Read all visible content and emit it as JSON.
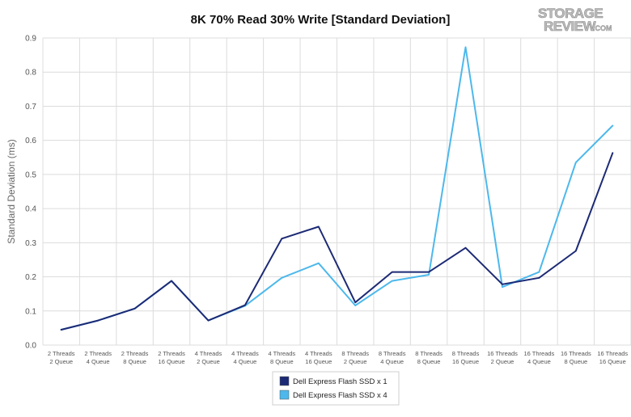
{
  "watermark": {
    "line1": "STORAGE",
    "line2": "REVIEW",
    "suffix": ".COM"
  },
  "colors": {
    "series1": "#1c2a75",
    "series2": "#4db8ec",
    "grid": "#dcdcdc"
  },
  "chart_data": {
    "type": "line",
    "title": "8K 70% Read 30% Write [Standard Deviation]",
    "xlabel": "",
    "ylabel": "Standard Deviation (ms)",
    "ylim": [
      0,
      0.9
    ],
    "yticks": [
      "0.0",
      "0.1",
      "0.2",
      "0.3",
      "0.4",
      "0.5",
      "0.6",
      "0.7",
      "0.8",
      "0.9"
    ],
    "grid": true,
    "legend_position": "bottom",
    "categories": [
      [
        "2 Threads",
        "2 Queue"
      ],
      [
        "2 Threads",
        "4 Queue"
      ],
      [
        "2 Threads",
        "8 Queue"
      ],
      [
        "2 Threads",
        "16 Queue"
      ],
      [
        "4 Threads",
        "2 Queue"
      ],
      [
        "4 Threads",
        "4 Queue"
      ],
      [
        "4 Threads",
        "8 Queue"
      ],
      [
        "4 Threads",
        "16 Queue"
      ],
      [
        "8 Threads",
        "2 Queue"
      ],
      [
        "8 Threads",
        "4 Queue"
      ],
      [
        "8 Threads",
        "8 Queue"
      ],
      [
        "8 Threads",
        "16 Queue"
      ],
      [
        "16 Threads",
        "2 Queue"
      ],
      [
        "16 Threads",
        "4 Queue"
      ],
      [
        "16 Threads",
        "8 Queue"
      ],
      [
        "16 Threads",
        "16 Queue"
      ]
    ],
    "series": [
      {
        "name": "Dell Express Flash SSD x 1",
        "color": "#1c2a75",
        "values": [
          0.045,
          0.072,
          0.107,
          0.188,
          0.072,
          0.117,
          0.312,
          0.347,
          0.125,
          0.214,
          0.214,
          0.285,
          0.178,
          0.197,
          0.276,
          0.563
        ]
      },
      {
        "name": "Dell Express Flash SSD x 4",
        "color": "#4db8ec",
        "values": [
          0.045,
          0.072,
          0.107,
          0.188,
          0.072,
          0.115,
          0.197,
          0.24,
          0.116,
          0.188,
          0.206,
          0.873,
          0.17,
          0.214,
          0.535,
          0.643
        ]
      }
    ]
  }
}
